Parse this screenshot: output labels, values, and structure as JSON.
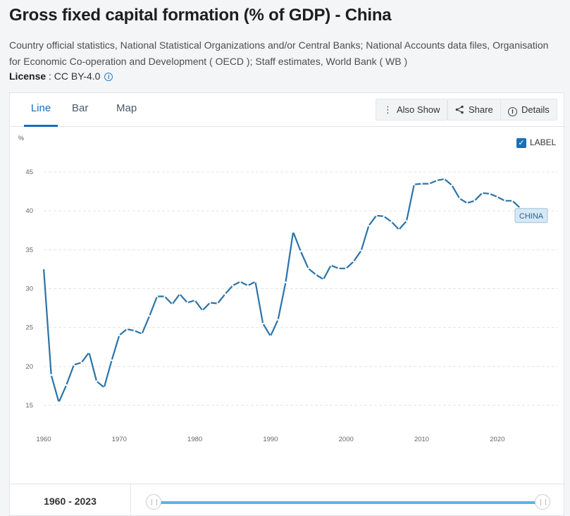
{
  "header": {
    "title": "Gross fixed capital formation (% of GDP) - China",
    "source": "Country official statistics, National Statistical Organizations and/or Central Banks; National Accounts data files, Organisation for Economic Co-operation and Development ( OECD ); Staff estimates, World Bank ( WB )",
    "license_label": "License",
    "license_value": " : CC BY-4.0"
  },
  "tabs": [
    {
      "label": "Line",
      "active": true
    },
    {
      "label": "Bar",
      "active": false
    },
    {
      "label": "Map",
      "active": false
    }
  ],
  "toolbar": {
    "also_show": "Also Show",
    "share": "Share",
    "details": "Details"
  },
  "label_toggle": {
    "label": "LABEL",
    "checked": true
  },
  "range": {
    "start": "1960",
    "end": "2023",
    "separator": " - "
  },
  "colors": {
    "line": "#2a73a8",
    "accent": "#1a6fb8",
    "badge_bg": "#d7e8f5",
    "slider": "#5db3e6"
  },
  "chart_data": {
    "type": "line",
    "ylabel": "%",
    "ylim": [
      15,
      45
    ],
    "yticks": [
      15,
      20,
      25,
      30,
      35,
      40,
      45
    ],
    "xlim": [
      1960,
      2023
    ],
    "xticks": [
      1960,
      1970,
      1980,
      1990,
      2000,
      2010,
      2020
    ],
    "grid": true,
    "series": [
      {
        "name": "CHINA",
        "x": [
          1960,
          1961,
          1962,
          1963,
          1964,
          1965,
          1966,
          1967,
          1968,
          1969,
          1970,
          1971,
          1972,
          1973,
          1974,
          1975,
          1976,
          1977,
          1978,
          1979,
          1980,
          1981,
          1982,
          1983,
          1984,
          1985,
          1986,
          1987,
          1988,
          1989,
          1990,
          1991,
          1992,
          1993,
          1994,
          1995,
          1996,
          1997,
          1998,
          1999,
          2000,
          2001,
          2002,
          2003,
          2004,
          2005,
          2006,
          2007,
          2008,
          2009,
          2010,
          2011,
          2012,
          2013,
          2014,
          2015,
          2016,
          2017,
          2018,
          2019,
          2020,
          2021,
          2022,
          2023
        ],
        "values": [
          32.6,
          18.9,
          15.4,
          17.6,
          20.2,
          20.5,
          21.8,
          18.1,
          17.3,
          20.8,
          24.0,
          24.8,
          24.6,
          24.2,
          26.5,
          29.0,
          29.0,
          28.0,
          29.3,
          28.2,
          28.5,
          27.2,
          28.2,
          28.1,
          29.3,
          30.4,
          30.9,
          30.4,
          30.9,
          25.5,
          23.9,
          26.0,
          30.8,
          37.3,
          34.8,
          32.6,
          31.8,
          31.2,
          33.0,
          32.6,
          32.6,
          33.5,
          34.9,
          38.1,
          39.4,
          39.3,
          38.6,
          37.6,
          38.7,
          43.4,
          43.5,
          43.5,
          43.9,
          44.1,
          43.3,
          41.6,
          41.0,
          41.3,
          42.3,
          42.2,
          41.8,
          41.3,
          41.3,
          40.4
        ]
      }
    ]
  }
}
